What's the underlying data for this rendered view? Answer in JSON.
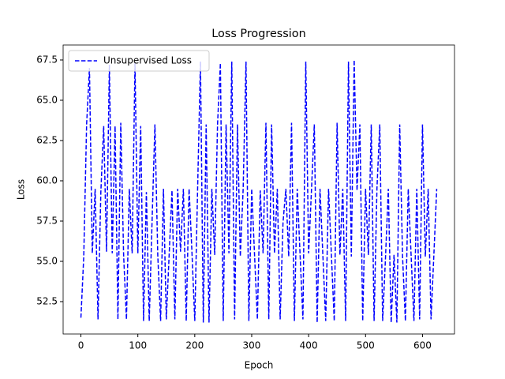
{
  "chart_data": {
    "type": "line",
    "title": "Loss Progression",
    "x_label": "Epoch",
    "y_label": "Loss",
    "x": [
      0,
      5,
      10,
      15,
      20,
      25,
      30,
      35,
      40,
      45,
      50,
      55,
      60,
      65,
      70,
      75,
      80,
      85,
      90,
      95,
      100,
      105,
      110,
      115,
      120,
      125,
      130,
      135,
      140,
      145,
      150,
      155,
      160,
      165,
      170,
      175,
      180,
      185,
      190,
      195,
      200,
      205,
      210,
      215,
      220,
      225,
      230,
      235,
      240,
      245,
      250,
      255,
      260,
      265,
      270,
      275,
      280,
      285,
      290,
      295,
      300,
      305,
      310,
      315,
      320,
      325,
      330,
      335,
      340,
      345,
      350,
      355,
      360,
      365,
      370,
      375,
      380,
      385,
      390,
      395,
      400,
      405,
      410,
      415,
      420,
      425,
      430,
      435,
      440,
      445,
      450,
      455,
      460,
      465,
      470,
      475,
      480,
      485,
      490,
      495,
      500,
      505,
      510,
      515,
      520,
      525,
      530,
      535,
      540,
      545,
      550,
      555,
      560,
      565,
      570,
      575,
      580,
      585,
      590,
      595,
      600,
      605,
      610,
      615,
      620,
      625
    ],
    "series": [
      {
        "name": "Unsupervised Loss",
        "color": "#0000ff",
        "linestyle": "dashed",
        "values": [
          51.5,
          55.3,
          63.5,
          67.0,
          55.5,
          59.5,
          51.4,
          59.3,
          63.4,
          55.6,
          67.2,
          55.5,
          63.4,
          51.4,
          63.6,
          55.4,
          51.4,
          59.5,
          55.5,
          67.3,
          55.5,
          63.4,
          51.3,
          59.3,
          51.3,
          57.5,
          63.5,
          55.4,
          51.3,
          59.5,
          51.4,
          55.4,
          59.4,
          51.4,
          59.5,
          55.6,
          59.5,
          51.3,
          59.5,
          55.6,
          51.3,
          59.5,
          67.4,
          51.2,
          63.5,
          51.2,
          59.5,
          55.4,
          63.5,
          67.3,
          51.3,
          63.5,
          55.5,
          67.4,
          51.4,
          63.5,
          55.3,
          59.5,
          67.4,
          51.3,
          59.5,
          55.4,
          51.4,
          59.4,
          55.5,
          63.6,
          51.4,
          63.5,
          55.5,
          59.5,
          51.4,
          57.4,
          59.5,
          55.3,
          63.6,
          51.3,
          59.5,
          55.4,
          51.4,
          67.4,
          55.5,
          59.4,
          63.5,
          51.2,
          59.5,
          55.4,
          51.3,
          59.5,
          55.4,
          51.3,
          63.6,
          55.4,
          59.5,
          51.3,
          67.4,
          55.3,
          67.5,
          59.4,
          63.5,
          51.3,
          59.5,
          55.4,
          63.5,
          51.3,
          59.5,
          63.5,
          51.3,
          55.2,
          59.5,
          51.2,
          55.4,
          51.2,
          63.5,
          55.3,
          51.3,
          59.5,
          55.4,
          51.3,
          59.5,
          51.4,
          63.5,
          55.3,
          59.5,
          51.4,
          55.4,
          59.5
        ]
      }
    ],
    "xlim": [
      -31.25,
      656.25
    ],
    "ylim": [
      50.49,
      68.43
    ],
    "xticks": [
      0,
      100,
      200,
      300,
      400,
      500,
      600
    ],
    "yticks": [
      52.5,
      {
        "value": 55.0,
        "label": "55.0"
      },
      57.5,
      {
        "value": 60.0,
        "label": "60.0"
      },
      62.5,
      {
        "value": 65.0,
        "label": "65.0"
      },
      67.5
    ],
    "legend": "upper left",
    "grid": false
  }
}
